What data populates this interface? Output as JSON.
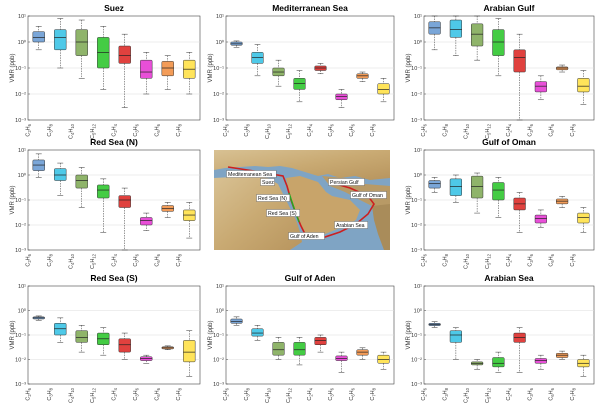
{
  "y_axis_label": "VMR (ppb)",
  "y_tick_labels": [
    "10¹",
    "10⁰",
    "10⁻¹",
    "10⁻²",
    "10⁻³"
  ],
  "species": [
    {
      "base": "C",
      "n1": "2",
      "h": "H",
      "n2": "6"
    },
    {
      "base": "C",
      "n1": "3",
      "h": "H",
      "n2": "8"
    },
    {
      "base": "C",
      "n1": "4",
      "h": "H",
      "n2": "10"
    },
    {
      "base": "C",
      "n1": "5",
      "h": "H",
      "n2": "12"
    },
    {
      "base": "C",
      "n1": "2",
      "h": "H",
      "n2": "4"
    },
    {
      "base": "C",
      "n1": "3",
      "h": "H",
      "n2": "6"
    },
    {
      "base": "C",
      "n1": "6",
      "h": "H",
      "n2": "6"
    },
    {
      "base": "C",
      "n1": "7",
      "h": "H",
      "n2": "8"
    }
  ],
  "colors": [
    "#7aa6d8",
    "#4ec9e8",
    "#8fb46a",
    "#44cc44",
    "#e0413e",
    "#e84fd8",
    "#f39c58",
    "#ffe45a"
  ],
  "map_labels": [
    "Mediterranean Sea",
    "Suez",
    "Red Sea (N)",
    "Red Sea (S)",
    "Gulf of Aden",
    "Persian Gulf",
    "Gulf of Oman",
    "Arabian Sea"
  ],
  "chart_data": [
    {
      "type": "box",
      "title": "Suez",
      "ylabel": "VMR (ppb)",
      "ylim": [
        0.001,
        10
      ],
      "yscale": "log",
      "grid": true,
      "categories": [
        "C2H6",
        "C3H8",
        "C4H10",
        "C5H12",
        "C2H4",
        "C3H6",
        "C6H6",
        "C7H8"
      ],
      "boxes": [
        {
          "whislo": 0.5,
          "q1": 1.0,
          "med": 1.5,
          "q3": 2.5,
          "whishi": 4.0
        },
        {
          "whislo": 0.1,
          "q1": 0.5,
          "med": 1.5,
          "q3": 3.0,
          "whishi": 8.0
        },
        {
          "whislo": 0.04,
          "q1": 0.3,
          "med": 1.0,
          "q3": 3.0,
          "whishi": 7.0
        },
        {
          "whislo": 0.015,
          "q1": 0.1,
          "med": 0.4,
          "q3": 1.5,
          "whishi": 4.0
        },
        {
          "whislo": 0.003,
          "q1": 0.15,
          "med": 0.3,
          "q3": 0.7,
          "whishi": 2.0
        },
        {
          "whislo": 0.01,
          "q1": 0.04,
          "med": 0.07,
          "q3": 0.2,
          "whishi": 0.4
        },
        {
          "whislo": 0.015,
          "q1": 0.05,
          "med": 0.1,
          "q3": 0.18,
          "whishi": 0.3
        },
        {
          "whislo": 0.01,
          "q1": 0.04,
          "med": 0.09,
          "q3": 0.2,
          "whishi": 0.4
        }
      ]
    },
    {
      "type": "box",
      "title": "Mediterranean Sea",
      "ylabel": "VMR (ppb)",
      "ylim": [
        0.001,
        10
      ],
      "yscale": "log",
      "grid": true,
      "categories": [
        "C2H6",
        "C3H8",
        "C4H10",
        "C5H12",
        "C2H4",
        "C3H6",
        "C6H6",
        "C7H8"
      ],
      "boxes": [
        {
          "whislo": 0.6,
          "q1": 0.75,
          "med": 0.85,
          "q3": 1.0,
          "whishi": 1.1
        },
        {
          "whislo": 0.05,
          "q1": 0.15,
          "med": 0.25,
          "q3": 0.4,
          "whishi": 0.8
        },
        {
          "whislo": 0.02,
          "q1": 0.05,
          "med": 0.07,
          "q3": 0.1,
          "whishi": 0.2
        },
        {
          "whislo": 0.005,
          "q1": 0.015,
          "med": 0.025,
          "q3": 0.04,
          "whishi": 0.08
        },
        {
          "whislo": 0.06,
          "q1": 0.08,
          "med": 0.1,
          "q3": 0.12,
          "whishi": 0.15
        },
        {
          "whislo": 0.003,
          "q1": 0.006,
          "med": 0.008,
          "q3": 0.01,
          "whishi": 0.015
        },
        {
          "whislo": 0.03,
          "q1": 0.04,
          "med": 0.05,
          "q3": 0.06,
          "whishi": 0.07
        },
        {
          "whislo": 0.005,
          "q1": 0.01,
          "med": 0.015,
          "q3": 0.025,
          "whishi": 0.04
        }
      ]
    },
    {
      "type": "box",
      "title": "Arabian Gulf",
      "ylabel": "VMR (ppb)",
      "ylim": [
        0.001,
        10
      ],
      "yscale": "log",
      "grid": true,
      "categories": [
        "C2H6",
        "C3H8",
        "C4H10",
        "C5H12",
        "C2H4",
        "C3H6",
        "C6H6",
        "C7H8"
      ],
      "boxes": [
        {
          "whislo": 0.5,
          "q1": 2.0,
          "med": 3.5,
          "q3": 6.0,
          "whishi": 12.0
        },
        {
          "whislo": 0.3,
          "q1": 1.5,
          "med": 3.0,
          "q3": 7.0,
          "whishi": 15.0
        },
        {
          "whislo": 0.2,
          "q1": 0.7,
          "med": 2.0,
          "q3": 5.0,
          "whishi": 12.0
        },
        {
          "whislo": 0.05,
          "q1": 0.3,
          "med": 1.0,
          "q3": 3.0,
          "whishi": 8.0
        },
        {
          "whislo": 0.001,
          "q1": 0.07,
          "med": 0.25,
          "q3": 0.5,
          "whishi": 2.0
        },
        {
          "whislo": 0.006,
          "q1": 0.012,
          "med": 0.02,
          "q3": 0.03,
          "whishi": 0.05
        },
        {
          "whislo": 0.07,
          "q1": 0.085,
          "med": 0.1,
          "q3": 0.11,
          "whishi": 0.13
        },
        {
          "whislo": 0.004,
          "q1": 0.012,
          "med": 0.02,
          "q3": 0.04,
          "whishi": 0.08
        }
      ]
    },
    {
      "type": "box",
      "title": "Red Sea (N)",
      "ylabel": "VMR (ppb)",
      "ylim": [
        0.001,
        10
      ],
      "yscale": "log",
      "grid": true,
      "categories": [
        "C2H6",
        "C3H8",
        "C4H10",
        "C5H12",
        "C2H4",
        "C3H6",
        "C6H6",
        "C7H8"
      ],
      "boxes": [
        {
          "whislo": 0.8,
          "q1": 1.5,
          "med": 2.5,
          "q3": 4.0,
          "whishi": 7.0
        },
        {
          "whislo": 0.15,
          "q1": 0.6,
          "med": 1.0,
          "q3": 1.8,
          "whishi": 3.0
        },
        {
          "whislo": 0.05,
          "q1": 0.3,
          "med": 0.6,
          "q3": 1.0,
          "whishi": 2.0
        },
        {
          "whislo": 0.005,
          "q1": 0.12,
          "med": 0.25,
          "q3": 0.4,
          "whishi": 0.7
        },
        {
          "whislo": 0.001,
          "q1": 0.05,
          "med": 0.1,
          "q3": 0.15,
          "whishi": 0.3
        },
        {
          "whislo": 0.006,
          "q1": 0.01,
          "med": 0.015,
          "q3": 0.02,
          "whishi": 0.03
        },
        {
          "whislo": 0.02,
          "q1": 0.035,
          "med": 0.045,
          "q3": 0.06,
          "whishi": 0.08
        },
        {
          "whislo": 0.003,
          "q1": 0.015,
          "med": 0.025,
          "q3": 0.04,
          "whishi": 0.08
        }
      ]
    },
    {
      "type": "box",
      "title": "Gulf of Oman",
      "ylabel": "VMR (ppb)",
      "ylim": [
        0.001,
        10
      ],
      "yscale": "log",
      "grid": true,
      "categories": [
        "C2H6",
        "C3H8",
        "C4H10",
        "C5H12",
        "C2H4",
        "C3H6",
        "C6H6",
        "C7H8"
      ],
      "boxes": [
        {
          "whislo": 0.2,
          "q1": 0.3,
          "med": 0.45,
          "q3": 0.6,
          "whishi": 0.8
        },
        {
          "whislo": 0.08,
          "q1": 0.15,
          "med": 0.35,
          "q3": 0.7,
          "whishi": 1.0
        },
        {
          "whislo": 0.03,
          "q1": 0.12,
          "med": 0.35,
          "q3": 0.9,
          "whishi": 1.2
        },
        {
          "whislo": 0.02,
          "q1": 0.1,
          "med": 0.25,
          "q3": 0.5,
          "whishi": 0.8
        },
        {
          "whislo": 0.005,
          "q1": 0.04,
          "med": 0.07,
          "q3": 0.12,
          "whishi": 0.2
        },
        {
          "whislo": 0.008,
          "q1": 0.012,
          "med": 0.018,
          "q3": 0.025,
          "whishi": 0.04
        },
        {
          "whislo": 0.05,
          "q1": 0.07,
          "med": 0.09,
          "q3": 0.11,
          "whishi": 0.14
        },
        {
          "whislo": 0.005,
          "q1": 0.012,
          "med": 0.02,
          "q3": 0.03,
          "whishi": 0.05
        }
      ]
    },
    {
      "type": "box",
      "title": "Red Sea (S)",
      "ylabel": "VMR (ppb)",
      "ylim": [
        0.001,
        10
      ],
      "yscale": "log",
      "grid": true,
      "categories": [
        "C2H6",
        "C3H8",
        "C4H10",
        "C5H12",
        "C2H4",
        "C3H6",
        "C6H6",
        "C7H8"
      ],
      "boxes": [
        {
          "whislo": 0.4,
          "q1": 0.45,
          "med": 0.5,
          "q3": 0.55,
          "whishi": 0.6
        },
        {
          "whislo": 0.05,
          "q1": 0.1,
          "med": 0.18,
          "q3": 0.3,
          "whishi": 0.5
        },
        {
          "whislo": 0.02,
          "q1": 0.05,
          "med": 0.08,
          "q3": 0.15,
          "whishi": 0.25
        },
        {
          "whislo": 0.015,
          "q1": 0.04,
          "med": 0.07,
          "q3": 0.12,
          "whishi": 0.2
        },
        {
          "whislo": 0.01,
          "q1": 0.02,
          "med": 0.04,
          "q3": 0.07,
          "whishi": 0.12
        },
        {
          "whislo": 0.007,
          "q1": 0.009,
          "med": 0.011,
          "q3": 0.013,
          "whishi": 0.015
        },
        {
          "whislo": 0.025,
          "q1": 0.027,
          "med": 0.03,
          "q3": 0.033,
          "whishi": 0.036
        },
        {
          "whislo": 0.002,
          "q1": 0.008,
          "med": 0.02,
          "q3": 0.06,
          "whishi": 0.15
        }
      ]
    },
    {
      "type": "box",
      "title": "Gulf of Aden",
      "ylabel": "VMR (ppb)",
      "ylim": [
        0.001,
        10
      ],
      "yscale": "log",
      "grid": true,
      "categories": [
        "C2H6",
        "C3H8",
        "C4H10",
        "C5H12",
        "C2H4",
        "C3H6",
        "C6H6",
        "C7H8"
      ],
      "boxes": [
        {
          "whislo": 0.25,
          "q1": 0.3,
          "med": 0.35,
          "q3": 0.45,
          "whishi": 0.55
        },
        {
          "whislo": 0.06,
          "q1": 0.09,
          "med": 0.12,
          "q3": 0.18,
          "whishi": 0.25
        },
        {
          "whislo": 0.01,
          "q1": 0.015,
          "med": 0.025,
          "q3": 0.05,
          "whishi": 0.08
        },
        {
          "whislo": 0.006,
          "q1": 0.015,
          "med": 0.025,
          "q3": 0.05,
          "whishi": 0.08
        },
        {
          "whislo": 0.02,
          "q1": 0.04,
          "med": 0.06,
          "q3": 0.08,
          "whishi": 0.1
        },
        {
          "whislo": 0.003,
          "q1": 0.009,
          "med": 0.011,
          "q3": 0.014,
          "whishi": 0.02
        },
        {
          "whislo": 0.01,
          "q1": 0.015,
          "med": 0.02,
          "q3": 0.025,
          "whishi": 0.03
        },
        {
          "whislo": 0.004,
          "q1": 0.007,
          "med": 0.01,
          "q3": 0.015,
          "whishi": 0.02
        }
      ]
    },
    {
      "type": "box",
      "title": "Arabian Sea",
      "ylabel": "VMR (ppb)",
      "ylim": [
        0.001,
        10
      ],
      "yscale": "log",
      "grid": true,
      "categories": [
        "C2H6",
        "C3H8",
        "C4H10",
        "C5H12",
        "C2H4",
        "C3H6",
        "C6H6",
        "C7H8"
      ],
      "boxes": [
        {
          "whislo": 0.2,
          "q1": 0.24,
          "med": 0.27,
          "q3": 0.3,
          "whishi": 0.35
        },
        {
          "whislo": 0.01,
          "q1": 0.05,
          "med": 0.1,
          "q3": 0.15,
          "whishi": 0.2
        },
        {
          "whislo": 0.004,
          "q1": 0.006,
          "med": 0.007,
          "q3": 0.008,
          "whishi": 0.01
        },
        {
          "whislo": 0.003,
          "q1": 0.005,
          "med": 0.007,
          "q3": 0.012,
          "whishi": 0.02
        },
        {
          "whislo": 0.003,
          "q1": 0.05,
          "med": 0.08,
          "q3": 0.12,
          "whishi": 0.2
        },
        {
          "whislo": 0.004,
          "q1": 0.007,
          "med": 0.009,
          "q3": 0.011,
          "whishi": 0.015
        },
        {
          "whislo": 0.01,
          "q1": 0.012,
          "med": 0.015,
          "q3": 0.018,
          "whishi": 0.022
        },
        {
          "whislo": 0.002,
          "q1": 0.005,
          "med": 0.007,
          "q3": 0.01,
          "whishi": 0.015
        }
      ]
    }
  ]
}
